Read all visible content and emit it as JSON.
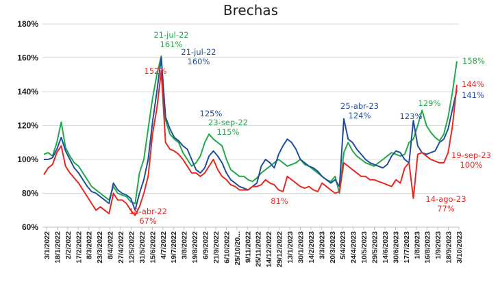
{
  "chart_data": {
    "type": "line",
    "title": "Brechas",
    "xlabel": "",
    "ylabel": "",
    "ylim": [
      60,
      180
    ],
    "y_ticks": [
      "60%",
      "80%",
      "100%",
      "120%",
      "140%",
      "160%",
      "180%"
    ],
    "y_tick_values": [
      60,
      80,
      100,
      120,
      140,
      160,
      180
    ],
    "x_tick_labels": [
      "3/1/2022",
      "18/1/2022",
      "2/2/2022",
      "17/2/2022",
      "8/3/2022",
      "23/3/2022",
      "8/4/2022",
      "27/4/2022",
      "12/5/2022",
      "31/5/2022",
      "15/6/2022",
      "4/7/2022",
      "19/7/2022",
      "3/8/2022",
      "19/8/2022",
      "6/9/2022",
      "21/9/2022",
      "6/10/2022",
      "25/10/20...",
      "9/11/2022",
      "25/11/2022",
      "14/12/2022",
      "29/12/2022",
      "13/1/2023",
      "30/1/2023",
      "14/2/2023",
      "3/3/2023",
      "20/3/2023",
      "5/4/2023",
      "24/4/2023",
      "10/5/2023",
      "29/5/2023",
      "14/6/2023",
      "30/6/2023",
      "17/7/2023",
      "1/8/2023",
      "16/8/2023",
      "1/9/2023",
      "18/9/2023",
      "3/10/2023"
    ],
    "series": [
      {
        "name": "green",
        "color": "#22a84a",
        "values": [
          103,
          104,
          102,
          110,
          122,
          107,
          102,
          98,
          96,
          92,
          88,
          84,
          82,
          80,
          78,
          76,
          84,
          80,
          79,
          78,
          75,
          74,
          92,
          100,
          118,
          136,
          150,
          161,
          123,
          115,
          112,
          110,
          104,
          100,
          96,
          98,
          102,
          110,
          115,
          112,
          110,
          108,
          100,
          94,
          92,
          90,
          90,
          88,
          87,
          89,
          92,
          94,
          96,
          98,
          100,
          98,
          96,
          97,
          98,
          100,
          97,
          96,
          94,
          92,
          90,
          88,
          87,
          90,
          80,
          104,
          110,
          105,
          102,
          100,
          98,
          97,
          96,
          98,
          100,
          102,
          104,
          103,
          102,
          103,
          110,
          112,
          120,
          129,
          120,
          116,
          113,
          111,
          115,
          125,
          140,
          158
        ]
      },
      {
        "name": "blue",
        "color": "#1f4e9c",
        "values": [
          100,
          100,
          101,
          106,
          113,
          105,
          100,
          95,
          92,
          88,
          84,
          81,
          80,
          78,
          76,
          74,
          86,
          82,
          80,
          79,
          77,
          70,
          80,
          88,
          100,
          122,
          140,
          160,
          125,
          118,
          113,
          111,
          108,
          106,
          100,
          94,
          92,
          95,
          102,
          105,
          102,
          98,
          92,
          88,
          86,
          84,
          83,
          82,
          84,
          86,
          96,
          100,
          98,
          95,
          103,
          108,
          112,
          110,
          106,
          100,
          98,
          96,
          95,
          93,
          90,
          88,
          86,
          88,
          84,
          124,
          112,
          110,
          106,
          103,
          100,
          98,
          97,
          96,
          95,
          97,
          102,
          105,
          104,
          100,
          98,
          123,
          108,
          104,
          103,
          104,
          105,
          110,
          112,
          118,
          130,
          141
        ]
      },
      {
        "name": "red",
        "color": "#e8271f",
        "values": [
          91,
          95,
          97,
          104,
          108,
          96,
          92,
          89,
          86,
          82,
          78,
          74,
          70,
          72,
          70,
          68,
          80,
          76,
          76,
          74,
          70,
          67,
          72,
          80,
          90,
          115,
          130,
          152,
          110,
          106,
          105,
          103,
          100,
          96,
          92,
          92,
          90,
          92,
          96,
          100,
          94,
          90,
          88,
          85,
          84,
          82,
          82,
          82,
          84,
          84,
          85,
          88,
          86,
          85,
          82,
          81,
          90,
          88,
          86,
          84,
          83,
          84,
          82,
          81,
          86,
          84,
          82,
          80,
          81,
          98,
          96,
          94,
          92,
          90,
          90,
          88,
          88,
          87,
          86,
          85,
          84,
          88,
          86,
          95,
          98,
          77,
          103,
          104,
          102,
          100,
          99,
          98,
          98,
          104,
          120,
          144
        ]
      }
    ],
    "annotations": [
      {
        "series": "green",
        "lines": [
          "21-jul-22",
          "161%"
        ]
      },
      {
        "series": "blue",
        "lines": [
          "21-jul-22",
          "160%"
        ]
      },
      {
        "series": "red",
        "lines": [
          "152%"
        ]
      },
      {
        "series": "blue",
        "lines": [
          "125%"
        ]
      },
      {
        "series": "green",
        "lines": [
          "23-sep-22",
          "115%"
        ]
      },
      {
        "series": "red",
        "lines": [
          "18-abr-22",
          "67%"
        ]
      },
      {
        "series": "red",
        "lines": [
          "81%"
        ]
      },
      {
        "series": "blue",
        "lines": [
          "25-abr-23",
          "124%"
        ]
      },
      {
        "series": "blue",
        "lines": [
          "123%"
        ]
      },
      {
        "series": "green",
        "lines": [
          "129%"
        ]
      },
      {
        "series": "green",
        "lines": [
          "158%"
        ]
      },
      {
        "series": "red",
        "lines": [
          "144%"
        ]
      },
      {
        "series": "blue",
        "lines": [
          "141%"
        ]
      },
      {
        "series": "red",
        "lines": [
          "19-sep-23",
          "100%"
        ]
      },
      {
        "series": "red",
        "lines": [
          "14-ago-23",
          "77%"
        ]
      }
    ]
  }
}
